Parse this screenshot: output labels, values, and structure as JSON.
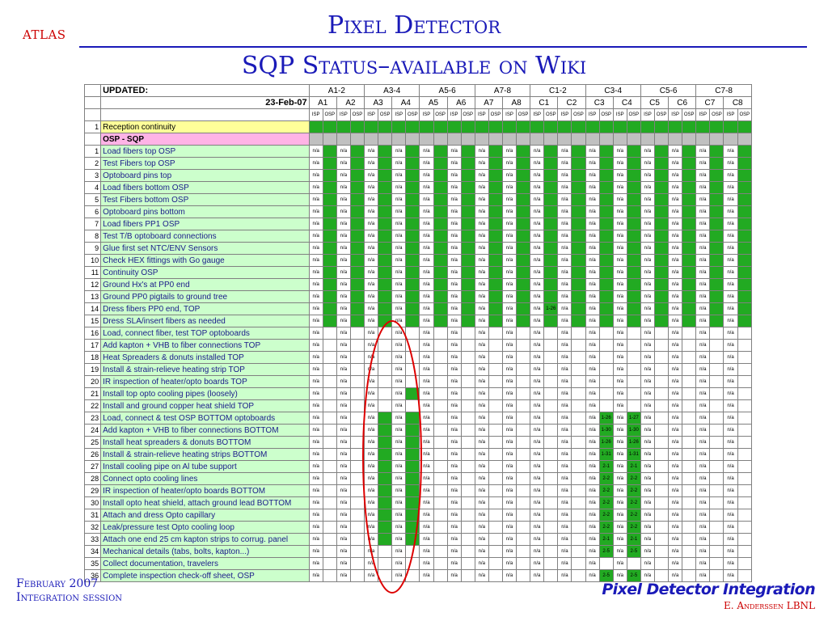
{
  "header": {
    "logo": "ATLAS",
    "title": "Pixel Detector",
    "subtitle": "SQP Status–available on Wiki"
  },
  "table": {
    "updated_label": "UPDATED:",
    "date": "23-Feb-07",
    "group_headers": [
      "A1-2",
      "A3-4",
      "A5-6",
      "A7-8",
      "C1-2",
      "C3-4",
      "C5-6",
      "C7-8"
    ],
    "sector_headers": [
      "A1",
      "A2",
      "A3",
      "A4",
      "A5",
      "A6",
      "A7",
      "A8",
      "C1",
      "C2",
      "C3",
      "C4",
      "C5",
      "C6",
      "C7",
      "C8"
    ],
    "sub_headers": [
      "ISP",
      "OSP"
    ],
    "reception_row": {
      "num": "1",
      "label": "Reception continuity"
    },
    "section_label": "OSP - SQP",
    "rows": [
      {
        "num": "1",
        "label": "Load fibers top OSP"
      },
      {
        "num": "2",
        "label": "Test Fibers top OSP"
      },
      {
        "num": "3",
        "label": "Optoboard pins top"
      },
      {
        "num": "4",
        "label": "Load fibers bottom OSP"
      },
      {
        "num": "5",
        "label": "Test Fibers bottom OSP"
      },
      {
        "num": "6",
        "label": "Optoboard pins bottom"
      },
      {
        "num": "7",
        "label": "Load fibers PP1 OSP"
      },
      {
        "num": "8",
        "label": "Test T/B optoboard connections"
      },
      {
        "num": "9",
        "label": "Glue first set NTC/ENV Sensors"
      },
      {
        "num": "10",
        "label": "Check HEX fittings with Go gauge"
      },
      {
        "num": "11",
        "label": "Continuity OSP"
      },
      {
        "num": "12",
        "label": "Ground Hx's at PP0 end"
      },
      {
        "num": "13",
        "label": "Ground PP0 pigtails to ground tree"
      },
      {
        "num": "14",
        "label": "Dress fibers PP0 end, TOP"
      },
      {
        "num": "15",
        "label": "Dress SLA/insert fibers as needed"
      },
      {
        "num": "16",
        "label": "Load, connect fiber, test TOP optoboards"
      },
      {
        "num": "17",
        "label": "Add kapton + VHB to fiber connections TOP"
      },
      {
        "num": "18",
        "label": "Heat Spreaders & donuts installed TOP"
      },
      {
        "num": "19",
        "label": "Install & strain-relieve heating strip TOP"
      },
      {
        "num": "20",
        "label": "IR inspection of heater/opto boards TOP"
      },
      {
        "num": "21",
        "label": "Install top opto cooling pipes (loosely)"
      },
      {
        "num": "22",
        "label": "Install and ground copper heat shield TOP"
      },
      {
        "num": "23",
        "label": "Load, connect & test OSP BOTTOM optoboards"
      },
      {
        "num": "24",
        "label": "Add kapton + VHB to fiber connections BOTTOM"
      },
      {
        "num": "25",
        "label": "Install heat spreaders & donuts BOTTOM"
      },
      {
        "num": "26",
        "label": "Install & strain-relieve heating strips BOTTOM"
      },
      {
        "num": "27",
        "label": "Install cooling pipe on Al tube support"
      },
      {
        "num": "28",
        "label": "Connect opto cooling lines"
      },
      {
        "num": "29",
        "label": "IR inspection of heater/opto boards BOTTOM"
      },
      {
        "num": "30",
        "label": "Install opto heat shield, attach ground lead BOTTOM"
      },
      {
        "num": "31",
        "label": "Attach and dress Opto capillary"
      },
      {
        "num": "32",
        "label": "Leak/pressure test Opto cooling loop"
      },
      {
        "num": "33",
        "label": "Attach one end 25 cm kapton strips to corrug. panel"
      },
      {
        "num": "34",
        "label": "Mechanical details (tabs, bolts, kapton...)"
      },
      {
        "num": "35",
        "label": "Collect documentation, travelers"
      },
      {
        "num": "36",
        "label": "Complete inspection check-off sheet, OSP"
      }
    ],
    "cell_na": "n/a",
    "c3_notes": {
      "23": [
        "1-26",
        "1-27"
      ],
      "24": [
        "1-30",
        "1-30"
      ],
      "25": [
        "1-26",
        "1-26"
      ],
      "26": [
        "1-31",
        "1-31"
      ],
      "27": [
        "2-1",
        "2-1"
      ],
      "28": [
        "2-2",
        "2-2"
      ],
      "29": [
        "2-2",
        "2-2"
      ],
      "30": [
        "2-2",
        "2-2"
      ],
      "31": [
        "2-2",
        "2-2"
      ],
      "32": [
        "2-2",
        "2-2"
      ],
      "33": [
        "2-1",
        "2-1"
      ],
      "34": [
        "2-5",
        "2-5"
      ],
      "36": [
        "2-5",
        "2-5"
      ]
    },
    "c1_note_row14": "1-26",
    "colors": {
      "done": "#22aa22",
      "pending": "#ffffff",
      "na": "#ffffff"
    }
  },
  "footer": {
    "line1": "February 2007",
    "line2": "Integration session",
    "title": "Pixel Detector Integration",
    "author": "E. Anderssen LBNL"
  }
}
